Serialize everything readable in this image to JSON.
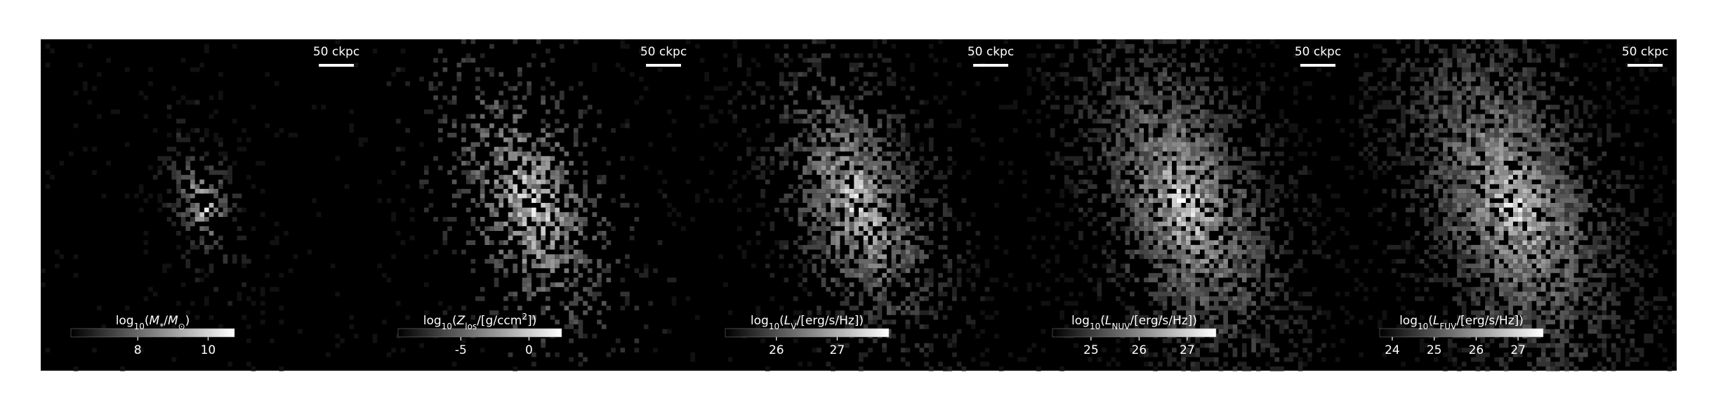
{
  "panels": [
    {
      "scale_bar": "50 ckpc",
      "colorbar": {
        "label": [
          [
            "log",
            "n"
          ],
          [
            "10",
            "sub"
          ],
          [
            "(",
            "n"
          ],
          [
            "M",
            "i"
          ],
          [
            "*",
            "sub"
          ],
          [
            "/",
            "n"
          ],
          [
            "M",
            "i"
          ],
          [
            "⊙",
            "sub"
          ],
          [
            ")",
            "n"
          ]
        ],
        "clim": [
          6.1,
          10.75
        ],
        "ticks": [
          8,
          10
        ]
      }
    },
    {
      "scale_bar": "50 ckpc",
      "colorbar": {
        "label": [
          [
            "log",
            "n"
          ],
          [
            "10",
            "sub"
          ],
          [
            "(",
            "n"
          ],
          [
            "Z",
            "i"
          ],
          [
            "los",
            "sub"
          ],
          [
            "/[g/ccm",
            "n"
          ],
          [
            "2",
            "sup"
          ],
          [
            "])",
            "n"
          ]
        ],
        "clim": [
          -9.6,
          2.4
        ],
        "ticks": [
          -5,
          0
        ]
      }
    },
    {
      "scale_bar": "50 ckpc",
      "colorbar": {
        "label": [
          [
            "log",
            "n"
          ],
          [
            "10",
            "sub"
          ],
          [
            "(",
            "n"
          ],
          [
            "L",
            "i"
          ],
          [
            "V",
            "sub"
          ],
          [
            "/[erg/s/Hz])",
            "n"
          ]
        ],
        "clim": [
          25.16,
          27.85
        ],
        "ticks": [
          26,
          27
        ]
      }
    },
    {
      "scale_bar": "50 ckpc",
      "colorbar": {
        "label": [
          [
            "log",
            "n"
          ],
          [
            "10",
            "sub"
          ],
          [
            "(",
            "n"
          ],
          [
            "L",
            "i"
          ],
          [
            "NUV",
            "sub"
          ],
          [
            "/[erg/s/Hz])",
            "n"
          ]
        ],
        "clim": [
          24.2,
          27.6
        ],
        "ticks": [
          25,
          26,
          27
        ]
      }
    },
    {
      "scale_bar": "50 ckpc",
      "colorbar": {
        "label": [
          [
            "log",
            "n"
          ],
          [
            "10",
            "sub"
          ],
          [
            "(",
            "n"
          ],
          [
            "L",
            "i"
          ],
          [
            "FUV",
            "sub"
          ],
          [
            "/[erg/s/Hz])",
            "n"
          ]
        ],
        "clim": [
          23.7,
          27.6
        ],
        "ticks": [
          24,
          25,
          26,
          27
        ]
      }
    }
  ]
}
